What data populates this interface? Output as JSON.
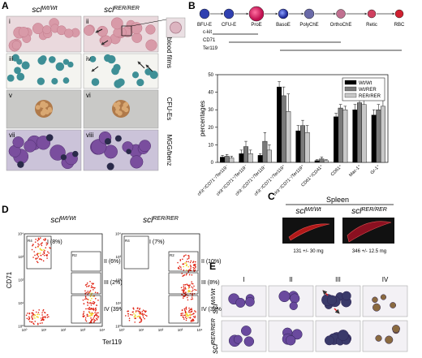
{
  "panel_labels": [
    "A",
    "B",
    "C",
    "D",
    "E"
  ],
  "panel_a": {
    "columns": [
      {
        "gene": "scl",
        "genotype": "Wt/Wt"
      },
      {
        "gene": "scl",
        "genotype": "RER/RER"
      }
    ],
    "tiles": [
      "i",
      "ii",
      "iii",
      "iv",
      "v",
      "vi",
      "vii",
      "viii"
    ],
    "row_labels": [
      "blood films",
      "CFU-Es",
      "MGG/benz"
    ]
  },
  "panel_b": {
    "stages": [
      "BFU-E",
      "CFU-E",
      "ProE",
      "BasoE",
      "PolyChE",
      "OrthoChE",
      "Retic",
      "RBC"
    ],
    "markers": [
      "c-kit",
      "CD71",
      "Ter119"
    ]
  },
  "chart_data": {
    "type": "bar",
    "y_label": "percentages",
    "categories": [
      "cKit⁺/CD71⁻/Ter119⁻",
      "cKit⁺/CD71⁺/Ter119⁻",
      "cKit⁻/CD71⁺/Ter119⁻",
      "cKit⁻/CD71⁺/Ter119⁺",
      "cKit⁻/CD71⁻/Ter119⁺",
      "CD61⁺/CD41⁺",
      "CD61⁺",
      "Mac-1⁺",
      "Gr-1⁺"
    ],
    "series": [
      {
        "name": "Wt/Wt",
        "color": "#000000",
        "values": [
          3,
          5,
          4,
          43,
          18,
          1,
          26,
          30,
          27
        ],
        "errors": [
          1,
          2,
          1,
          3,
          3,
          0.5,
          2,
          3,
          3
        ]
      },
      {
        "name": "Wt/RER",
        "color": "#7a7a7a",
        "values": [
          3.5,
          9,
          12,
          38,
          21,
          2,
          31,
          34,
          30
        ],
        "errors": [
          1,
          3,
          5,
          5,
          3,
          1,
          2,
          3,
          3
        ]
      },
      {
        "name": "RER/RER",
        "color": "#c8c8c8",
        "values": [
          2.5,
          5,
          7,
          29,
          17,
          1,
          30,
          33,
          32
        ],
        "errors": [
          1,
          2,
          3,
          10,
          4,
          0.5,
          2,
          3,
          4
        ]
      }
    ],
    "ylim": [
      0,
      50
    ],
    "yticks": [
      0,
      10,
      20,
      30,
      40,
      50
    ],
    "legend": "upper-right"
  },
  "panel_c": {
    "title": "Spleen",
    "columns": [
      {
        "gene": "scl",
        "genotype": "Wt/Wt",
        "mass": "131 +/- 30 mg"
      },
      {
        "gene": "scl",
        "genotype": "RER/RER",
        "mass": "346 +/- 12.5 mg"
      }
    ]
  },
  "panel_d": {
    "columns": [
      {
        "gene": "scl",
        "genotype": "Wt/Wt",
        "gates": [
          "I (8%)",
          "II (6%)",
          "III (2%)",
          "IV (39%)"
        ]
      },
      {
        "gene": "scl",
        "genotype": "RER/RER",
        "gates": [
          "I (7%)",
          "II (10%)",
          "III (8%)",
          "IV (32%)"
        ]
      }
    ],
    "regions": [
      "R4",
      "R2"
    ],
    "ticks": [
      "10⁰",
      "10¹",
      "10²",
      "10³",
      "10⁴"
    ],
    "y_label": "CD71",
    "x_label": "Ter119"
  },
  "panel_e": {
    "columns": [
      "I",
      "II",
      "III",
      "IV"
    ],
    "rows": [
      {
        "gene": "scl",
        "genotype": "Wt/Wt"
      },
      {
        "gene": "scl",
        "genotype": "RER/RER"
      }
    ]
  }
}
